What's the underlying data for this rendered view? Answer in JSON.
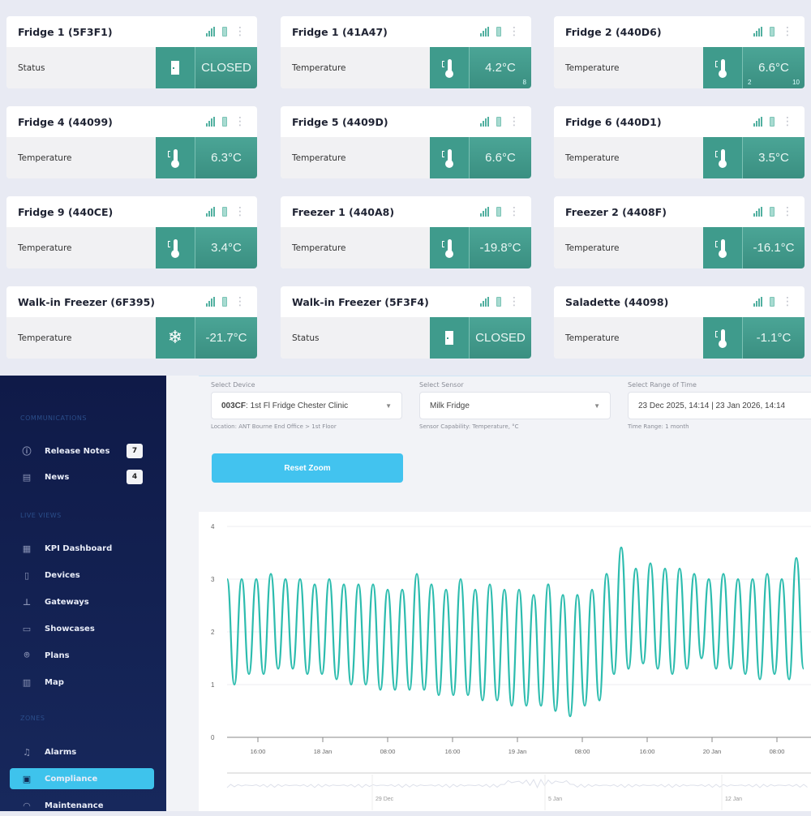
{
  "cards": [
    {
      "title": "Fridge 1 (5F3F1)",
      "label": "Status",
      "icon": "door-icon",
      "value": "CLOSED"
    },
    {
      "title": "Fridge 1 (41A47)",
      "label": "Temperature",
      "icon": "thermometer-icon",
      "value": "4.2°C",
      "sub_right": "8"
    },
    {
      "title": "Fridge 2 (440D6)",
      "label": "Temperature",
      "icon": "thermometer-icon",
      "value": "6.6°C",
      "sub_left": "2",
      "sub_right": "10"
    },
    {
      "title": "Fridge 4 (44099)",
      "label": "Temperature",
      "icon": "thermometer-icon",
      "value": "6.3°C"
    },
    {
      "title": "Fridge 5 (4409D)",
      "label": "Temperature",
      "icon": "thermometer-icon",
      "value": "6.6°C"
    },
    {
      "title": "Fridge 6 (440D1)",
      "label": "Temperature",
      "icon": "thermometer-icon",
      "value": "3.5°C"
    },
    {
      "title": "Fridge 9 (440CE)",
      "label": "Temperature",
      "icon": "thermometer-icon",
      "value": "3.4°C"
    },
    {
      "title": "Freezer 1 (440A8)",
      "label": "Temperature",
      "icon": "thermometer-icon",
      "value": "-19.8°C"
    },
    {
      "title": "Freezer 2 (4408F)",
      "label": "Temperature",
      "icon": "thermometer-icon",
      "value": "-16.1°C"
    },
    {
      "title": "Walk-in Freezer (6F395)",
      "label": "Temperature",
      "icon": "snowflake-icon",
      "value": "-21.7°C"
    },
    {
      "title": "Walk-in Freezer (5F3F4)",
      "label": "Status",
      "icon": "door-icon",
      "value": "CLOSED"
    },
    {
      "title": "Saladette (44098)",
      "label": "Temperature",
      "icon": "thermometer-icon",
      "value": "-1.1°C"
    }
  ],
  "sidebar": {
    "sections": [
      {
        "title": "COMMUNICATIONS",
        "items": [
          {
            "label": "Release Notes",
            "icon": "info-icon",
            "badge": "7"
          },
          {
            "label": "News",
            "icon": "document-icon",
            "badge": "4"
          }
        ]
      },
      {
        "title": "LIVE VIEWS",
        "items": [
          {
            "label": "KPI Dashboard",
            "icon": "dashboard-icon"
          },
          {
            "label": "Devices",
            "icon": "device-icon"
          },
          {
            "label": "Gateways",
            "icon": "gateway-icon"
          },
          {
            "label": "Showcases",
            "icon": "showcase-icon"
          },
          {
            "label": "Plans",
            "icon": "pin-icon"
          },
          {
            "label": "Map",
            "icon": "map-icon"
          }
        ]
      },
      {
        "title": "ZONES",
        "items": [
          {
            "label": "Alarms",
            "icon": "bell-icon"
          },
          {
            "label": "Compliance",
            "icon": "compliance-icon",
            "active": true
          },
          {
            "label": "Maintenance",
            "icon": "wifi-icon"
          }
        ]
      }
    ]
  },
  "form": {
    "device": {
      "caption": "Select Device",
      "code": "003CF",
      "value": ": 1st Fl Fridge Chester Clinic",
      "hint": "Location: ANT Bourne End Office > 1st Floor"
    },
    "sensor": {
      "caption": "Select Sensor",
      "value": "Milk Fridge",
      "hint": "Sensor Capability: Temperature, °C"
    },
    "range": {
      "caption": "Select Range of Time",
      "value": "23 Dec 2025, 14:14 | 23 Jan 2026, 14:14",
      "hint": "Time Range: 1 month"
    },
    "reset_label": "Reset Zoom"
  },
  "colors": {
    "accent": "#3ec3ec",
    "card_teal": "#3f9b8c",
    "line": "#2cbcae"
  },
  "chart_data": {
    "type": "line",
    "ylim": [
      0,
      4
    ],
    "yticks": [
      "0",
      "1",
      "2",
      "3",
      "4"
    ],
    "xticks": [
      "16:00",
      "18 Jan",
      "08:00",
      "16:00",
      "19 Jan",
      "08:00",
      "16:00",
      "20 Jan",
      "08:00"
    ],
    "navigator_labels": [
      "29 Dec",
      "5 Jan",
      "12 Jan"
    ],
    "grid": true,
    "values": [
      3.0,
      1.0,
      3.0,
      1.2,
      3.0,
      1.2,
      3.1,
      1.3,
      3.0,
      1.3,
      3.0,
      1.2,
      2.9,
      1.2,
      3.0,
      1.1,
      2.9,
      1.0,
      2.9,
      1.0,
      2.9,
      0.9,
      2.8,
      0.9,
      2.8,
      0.9,
      3.1,
      0.9,
      2.9,
      0.8,
      2.8,
      0.8,
      3.0,
      0.8,
      2.8,
      0.7,
      2.9,
      0.7,
      2.8,
      0.6,
      2.8,
      0.6,
      2.7,
      0.6,
      2.9,
      0.5,
      2.7,
      0.4,
      2.7,
      0.6,
      2.8,
      0.7,
      3.1,
      1.2,
      3.6,
      1.3,
      3.2,
      1.4,
      3.3,
      1.3,
      3.2,
      1.2,
      3.2,
      1.3,
      3.1,
      1.5,
      3.0,
      1.3,
      3.1,
      1.3,
      3.0,
      1.2,
      3.0,
      1.1,
      3.1,
      1.2,
      3.0,
      1.1,
      3.4,
      1.3
    ]
  }
}
